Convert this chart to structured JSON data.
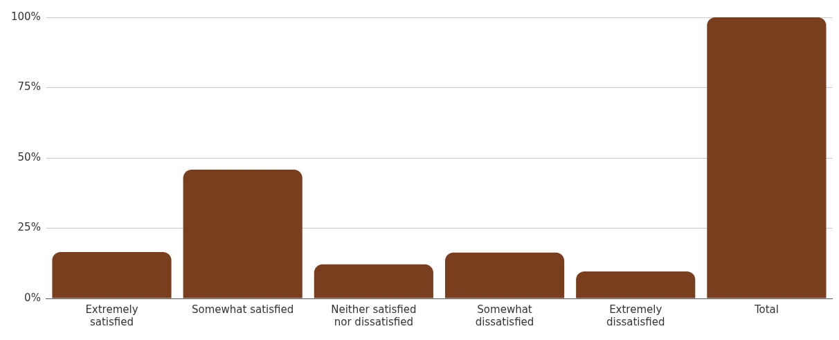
{
  "chart_data": {
    "type": "bar",
    "categories": [
      "Extremely satisfied",
      "Somewhat satisfied",
      "Neither satisfied nor dissatisfied",
      "Somewhat dissatisfied",
      "Extremely dissatisfied",
      "Total"
    ],
    "values": [
      16.5,
      45.8,
      12.1,
      16.3,
      9.6,
      100
    ],
    "color": "#783e1e",
    "ylim": [
      0,
      100
    ],
    "yticks": [
      {
        "value": 0,
        "label": "0%"
      },
      {
        "value": 25,
        "label": "25%"
      },
      {
        "value": 50,
        "label": "50%"
      },
      {
        "value": 75,
        "label": "75%"
      },
      {
        "value": 100,
        "label": "100%"
      }
    ],
    "grid": "y",
    "legend": false
  }
}
